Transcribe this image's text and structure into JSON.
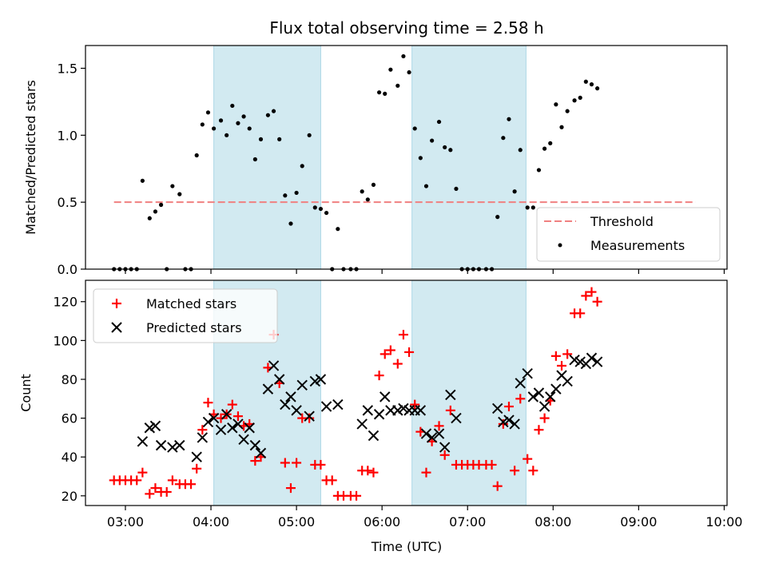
{
  "chart_data": [
    {
      "type": "scatter",
      "title": "Flux total observing time = 2.58 h",
      "xlabel": "",
      "ylabel": "Matched/Predicted stars",
      "ylim": [
        0,
        1.67
      ],
      "yticks": [
        0.0,
        0.5,
        1.0,
        1.5
      ],
      "ytick_labels": [
        "0.0",
        "0.5",
        "1.0",
        "1.5"
      ],
      "xlim": [
        "02:32",
        "10:02"
      ],
      "legend": {
        "placement": "lower-right",
        "entries": [
          "Threshold",
          "Measurements"
        ]
      },
      "threshold": {
        "name": "Threshold",
        "value": 0.5,
        "x_start": "02:52",
        "x_end": "09:40",
        "color": "#f08080",
        "style": "dashed"
      },
      "shaded_intervals": [
        {
          "start": "04:02",
          "end": "05:17",
          "color": "#add8e6"
        },
        {
          "start": "06:21",
          "end": "07:41",
          "color": "#add8e6"
        }
      ],
      "series": [
        {
          "name": "Measurements",
          "marker": "dot",
          "color": "#000000",
          "points": [
            [
              "02:52",
              0.0
            ],
            [
              "02:56",
              0.0
            ],
            [
              "03:00",
              0.0
            ],
            [
              "03:04",
              0.0
            ],
            [
              "03:08",
              0.0
            ],
            [
              "03:12",
              0.66
            ],
            [
              "03:17",
              0.38
            ],
            [
              "03:21",
              0.43
            ],
            [
              "03:25",
              0.48
            ],
            [
              "03:29",
              0.0
            ],
            [
              "03:33",
              0.62
            ],
            [
              "03:38",
              0.56
            ],
            [
              "03:42",
              0.0
            ],
            [
              "03:46",
              0.0
            ],
            [
              "03:50",
              0.85
            ],
            [
              "03:54",
              1.08
            ],
            [
              "03:58",
              1.17
            ],
            [
              "04:02",
              1.05
            ],
            [
              "04:07",
              1.11
            ],
            [
              "04:11",
              1.0
            ],
            [
              "04:15",
              1.22
            ],
            [
              "04:19",
              1.09
            ],
            [
              "04:23",
              1.14
            ],
            [
              "04:27",
              1.05
            ],
            [
              "04:31",
              0.82
            ],
            [
              "04:35",
              0.97
            ],
            [
              "04:40",
              1.15
            ],
            [
              "04:44",
              1.18
            ],
            [
              "04:48",
              0.97
            ],
            [
              "04:52",
              0.55
            ],
            [
              "04:56",
              0.34
            ],
            [
              "05:00",
              0.57
            ],
            [
              "05:04",
              0.77
            ],
            [
              "05:09",
              1.0
            ],
            [
              "05:13",
              0.46
            ],
            [
              "05:17",
              0.45
            ],
            [
              "05:21",
              0.42
            ],
            [
              "05:25",
              0.0
            ],
            [
              "05:29",
              0.3
            ],
            [
              "05:33",
              0.0
            ],
            [
              "05:38",
              0.0
            ],
            [
              "05:42",
              0.0
            ],
            [
              "05:46",
              0.58
            ],
            [
              "05:50",
              0.52
            ],
            [
              "05:54",
              0.63
            ],
            [
              "05:58",
              1.32
            ],
            [
              "06:02",
              1.31
            ],
            [
              "06:06",
              1.49
            ],
            [
              "06:11",
              1.37
            ],
            [
              "06:15",
              1.59
            ],
            [
              "06:19",
              1.47
            ],
            [
              "06:23",
              1.05
            ],
            [
              "06:27",
              0.83
            ],
            [
              "06:31",
              0.62
            ],
            [
              "06:35",
              0.96
            ],
            [
              "06:40",
              1.1
            ],
            [
              "06:44",
              0.91
            ],
            [
              "06:48",
              0.89
            ],
            [
              "06:52",
              0.6
            ],
            [
              "06:56",
              0.0
            ],
            [
              "07:00",
              0.0
            ],
            [
              "07:04",
              0.0
            ],
            [
              "07:08",
              0.0
            ],
            [
              "07:13",
              0.0
            ],
            [
              "07:17",
              0.0
            ],
            [
              "07:21",
              0.39
            ],
            [
              "07:25",
              0.98
            ],
            [
              "07:29",
              1.12
            ],
            [
              "07:33",
              0.58
            ],
            [
              "07:37",
              0.89
            ],
            [
              "07:42",
              0.46
            ],
            [
              "07:46",
              0.46
            ],
            [
              "07:50",
              0.74
            ],
            [
              "07:54",
              0.9
            ],
            [
              "07:58",
              0.94
            ],
            [
              "08:02",
              1.23
            ],
            [
              "08:06",
              1.06
            ],
            [
              "08:10",
              1.18
            ],
            [
              "08:15",
              1.26
            ],
            [
              "08:19",
              1.28
            ],
            [
              "08:23",
              1.4
            ],
            [
              "08:27",
              1.38
            ],
            [
              "08:31",
              1.35
            ]
          ]
        }
      ]
    },
    {
      "type": "scatter",
      "title": "",
      "xlabel": "Time (UTC)",
      "ylabel": "Count",
      "ylim": [
        15,
        131
      ],
      "yticks": [
        20,
        40,
        60,
        80,
        100,
        120
      ],
      "ytick_labels": [
        "20",
        "40",
        "60",
        "80",
        "100",
        "120"
      ],
      "xlim": [
        "02:32",
        "10:02"
      ],
      "xticks": [
        "03:00",
        "04:00",
        "05:00",
        "06:00",
        "07:00",
        "08:00",
        "09:00",
        "10:00"
      ],
      "xtick_labels": [
        "03:00",
        "04:00",
        "05:00",
        "06:00",
        "07:00",
        "08:00",
        "09:00",
        "10:00"
      ],
      "legend": {
        "placement": "upper-left",
        "entries": [
          "Matched stars",
          "Predicted stars"
        ]
      },
      "shaded_intervals": [
        {
          "start": "04:02",
          "end": "05:17",
          "color": "#add8e6"
        },
        {
          "start": "06:21",
          "end": "07:41",
          "color": "#add8e6"
        }
      ],
      "series": [
        {
          "name": "Matched stars",
          "marker": "plus",
          "color": "#ff0000",
          "points": [
            [
              "02:52",
              28
            ],
            [
              "02:56",
              28
            ],
            [
              "03:00",
              28
            ],
            [
              "03:04",
              28
            ],
            [
              "03:08",
              28
            ],
            [
              "03:12",
              32
            ],
            [
              "03:17",
              21
            ],
            [
              "03:21",
              24
            ],
            [
              "03:25",
              22
            ],
            [
              "03:29",
              22
            ],
            [
              "03:33",
              28
            ],
            [
              "03:38",
              26
            ],
            [
              "03:42",
              26
            ],
            [
              "03:46",
              26
            ],
            [
              "03:50",
              34
            ],
            [
              "03:54",
              54
            ],
            [
              "03:58",
              68
            ],
            [
              "04:02",
              62
            ],
            [
              "04:07",
              60
            ],
            [
              "04:11",
              62
            ],
            [
              "04:15",
              67
            ],
            [
              "04:19",
              61
            ],
            [
              "04:23",
              56
            ],
            [
              "04:27",
              57
            ],
            [
              "04:31",
              38
            ],
            [
              "04:35",
              40
            ],
            [
              "04:40",
              86
            ],
            [
              "04:44",
              103
            ],
            [
              "04:48",
              78
            ],
            [
              "04:52",
              37
            ],
            [
              "04:56",
              24
            ],
            [
              "05:00",
              37
            ],
            [
              "05:04",
              60
            ],
            [
              "05:09",
              60
            ],
            [
              "05:13",
              36
            ],
            [
              "05:17",
              36
            ],
            [
              "05:21",
              28
            ],
            [
              "05:25",
              28
            ],
            [
              "05:29",
              20
            ],
            [
              "05:33",
              20
            ],
            [
              "05:38",
              20
            ],
            [
              "05:42",
              20
            ],
            [
              "05:46",
              33
            ],
            [
              "05:50",
              33
            ],
            [
              "05:54",
              32
            ],
            [
              "05:58",
              82
            ],
            [
              "06:02",
              93
            ],
            [
              "06:06",
              95
            ],
            [
              "06:11",
              88
            ],
            [
              "06:15",
              103
            ],
            [
              "06:19",
              94
            ],
            [
              "06:23",
              67
            ],
            [
              "06:27",
              53
            ],
            [
              "06:31",
              32
            ],
            [
              "06:35",
              48
            ],
            [
              "06:40",
              56
            ],
            [
              "06:44",
              41
            ],
            [
              "06:48",
              64
            ],
            [
              "06:52",
              36
            ],
            [
              "06:56",
              36
            ],
            [
              "07:00",
              36
            ],
            [
              "07:04",
              36
            ],
            [
              "07:08",
              36
            ],
            [
              "07:13",
              36
            ],
            [
              "07:17",
              36
            ],
            [
              "07:21",
              25
            ],
            [
              "07:25",
              57
            ],
            [
              "07:29",
              66
            ],
            [
              "07:33",
              33
            ],
            [
              "07:37",
              70
            ],
            [
              "07:42",
              39
            ],
            [
              "07:46",
              33
            ],
            [
              "07:50",
              54
            ],
            [
              "07:54",
              60
            ],
            [
              "07:58",
              69
            ],
            [
              "08:02",
              92
            ],
            [
              "08:06",
              87
            ],
            [
              "08:10",
              93
            ],
            [
              "08:15",
              114
            ],
            [
              "08:19",
              114
            ],
            [
              "08:23",
              123
            ],
            [
              "08:27",
              125
            ],
            [
              "08:31",
              120
            ]
          ]
        },
        {
          "name": "Predicted stars",
          "marker": "x",
          "color": "#000000",
          "points": [
            [
              "03:12",
              48
            ],
            [
              "03:17",
              55
            ],
            [
              "03:21",
              56
            ],
            [
              "03:25",
              46
            ],
            [
              "03:33",
              45
            ],
            [
              "03:38",
              46
            ],
            [
              "03:50",
              40
            ],
            [
              "03:54",
              50
            ],
            [
              "03:58",
              58
            ],
            [
              "04:02",
              60
            ],
            [
              "04:07",
              54
            ],
            [
              "04:11",
              62
            ],
            [
              "04:15",
              55
            ],
            [
              "04:19",
              57
            ],
            [
              "04:23",
              49
            ],
            [
              "04:27",
              55
            ],
            [
              "04:31",
              46
            ],
            [
              "04:35",
              42
            ],
            [
              "04:40",
              75
            ],
            [
              "04:44",
              87
            ],
            [
              "04:48",
              80
            ],
            [
              "04:52",
              67
            ],
            [
              "04:56",
              71
            ],
            [
              "05:00",
              64
            ],
            [
              "05:04",
              77
            ],
            [
              "05:09",
              61
            ],
            [
              "05:13",
              79
            ],
            [
              "05:17",
              80
            ],
            [
              "05:21",
              66
            ],
            [
              "05:29",
              67
            ],
            [
              "05:46",
              57
            ],
            [
              "05:50",
              64
            ],
            [
              "05:54",
              51
            ],
            [
              "05:58",
              62
            ],
            [
              "06:02",
              71
            ],
            [
              "06:06",
              64
            ],
            [
              "06:11",
              64
            ],
            [
              "06:15",
              65
            ],
            [
              "06:19",
              64
            ],
            [
              "06:23",
              64
            ],
            [
              "06:27",
              64
            ],
            [
              "06:31",
              52
            ],
            [
              "06:35",
              50
            ],
            [
              "06:40",
              52
            ],
            [
              "06:44",
              45
            ],
            [
              "06:48",
              72
            ],
            [
              "06:52",
              60
            ],
            [
              "07:21",
              65
            ],
            [
              "07:25",
              58
            ],
            [
              "07:29",
              59
            ],
            [
              "07:33",
              57
            ],
            [
              "07:37",
              78
            ],
            [
              "07:42",
              83
            ],
            [
              "07:46",
              71
            ],
            [
              "07:50",
              73
            ],
            [
              "07:54",
              66
            ],
            [
              "07:58",
              71
            ],
            [
              "08:02",
              75
            ],
            [
              "08:06",
              82
            ],
            [
              "08:10",
              79
            ],
            [
              "08:15",
              90
            ],
            [
              "08:19",
              89
            ],
            [
              "08:23",
              88
            ],
            [
              "08:27",
              91
            ],
            [
              "08:31",
              89
            ]
          ]
        }
      ]
    }
  ]
}
